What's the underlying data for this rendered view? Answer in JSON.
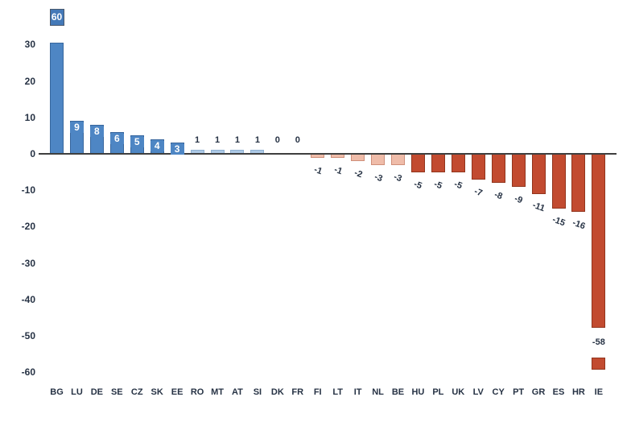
{
  "chart_data": {
    "type": "bar",
    "title": "",
    "categories": [
      "BG",
      "LU",
      "DE",
      "SE",
      "CZ",
      "SK",
      "EE",
      "RO",
      "MT",
      "AT",
      "SI",
      "DK",
      "FR",
      "FI",
      "LT",
      "IT",
      "NL",
      "BE",
      "HU",
      "PL",
      "UK",
      "LV",
      "CY",
      "PT",
      "GR",
      "ES",
      "HR",
      "IE"
    ],
    "values": [
      60,
      9,
      8,
      6,
      5,
      4,
      3,
      1,
      1,
      1,
      1,
      0,
      0,
      -1,
      -1,
      -2,
      -3,
      -3,
      -5,
      -5,
      -5,
      -7,
      -8,
      -9,
      -11,
      -15,
      -16,
      -58
    ],
    "xlabel": "",
    "ylabel": "",
    "yticks": [
      30,
      20,
      10,
      0,
      -10,
      -20,
      -30,
      -40,
      -50,
      -60
    ],
    "ylim": [
      -60,
      31
    ],
    "grid": false,
    "legend": null,
    "data_labels_visible": true,
    "truncated_bars": [
      "BG",
      "IE"
    ]
  },
  "colors": {
    "positive_large": "#4e86c4",
    "positive_small": "#adc9e5",
    "negative_small": "#efbca9",
    "negative_large": "#c24b30",
    "axis_line": "#3f3f3f",
    "label_text": "#263244",
    "inside_label_text": "#ffffff",
    "clip_label_bg": "#4479b8",
    "clip_label_border": "#49586c"
  }
}
